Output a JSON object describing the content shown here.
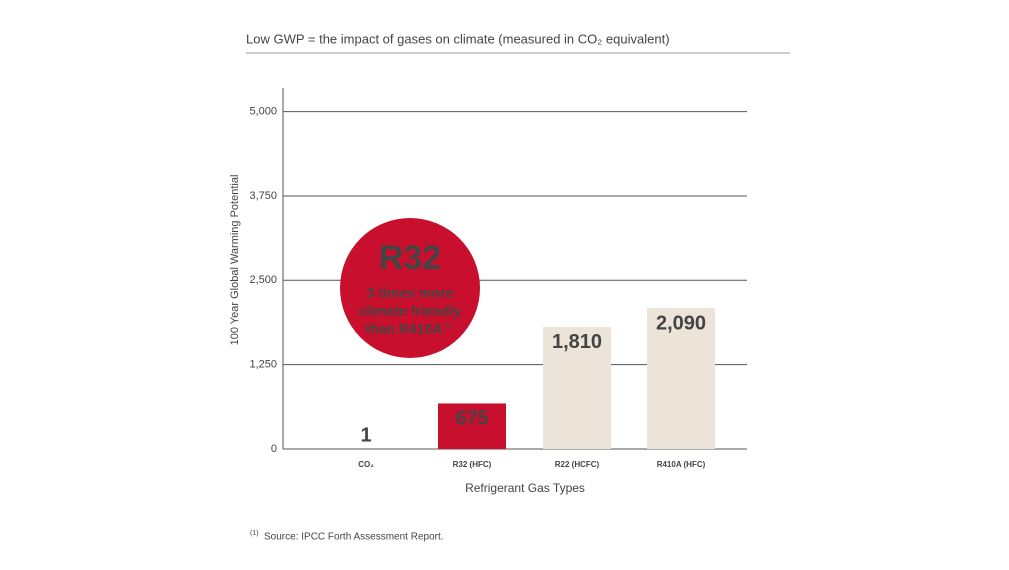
{
  "chart_data": {
    "type": "bar",
    "title": "Low GWP = the impact of gases on climate (measured in CO₂ equivalent)",
    "y_label": "100 Year Global Warming Potential",
    "x_label": "Refrigerant Gas Types",
    "categories": [
      "CO₂",
      "R32 (HFC)",
      "R22 (HCFC)",
      "R410A (HFC)"
    ],
    "values": [
      1,
      675,
      1810,
      2090
    ],
    "value_labels": [
      "1",
      "675",
      "1,810",
      "2,090"
    ],
    "colors": [
      "#333333",
      "#c8102e",
      "#ece4d8",
      "#ece4d8"
    ],
    "label_colors": [
      "#333333",
      "#ffffff",
      "#333333",
      "#333333"
    ],
    "ylim": [
      0,
      5350
    ],
    "yticks": [
      0,
      {
        "value": 1250,
        "label": "1,250"
      },
      {
        "value": 2500,
        "label": "2,500"
      },
      {
        "value": 3750,
        "label": "3,750"
      },
      {
        "value": 5000,
        "label": "5,000"
      }
    ],
    "grid": true,
    "annotation": {
      "title": "R32",
      "lines": [
        "3 times more",
        "climate friendly",
        "than R410A"
      ],
      "note_ref": "(1)",
      "color": "#c8102e"
    },
    "footnote": {
      "ref": "(1)",
      "text": "Source: IPCC Forth Assessment Report."
    }
  }
}
